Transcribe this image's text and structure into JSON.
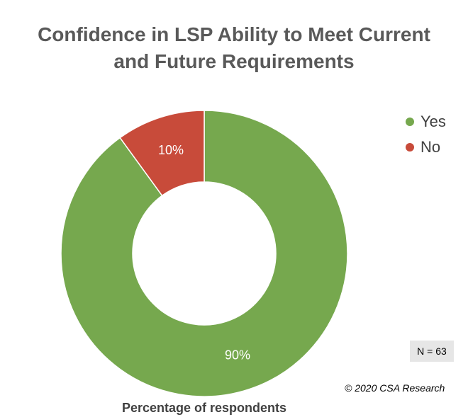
{
  "chart_data": {
    "type": "pie",
    "title_lines": [
      "Confidence in LSP Ability to Meet Current",
      "and Future Requirements"
    ],
    "categories": [
      "Yes",
      "No"
    ],
    "values": [
      90,
      10
    ],
    "value_labels": [
      "90%",
      "10%"
    ],
    "colors": [
      "#76a84e",
      "#c84b3a"
    ],
    "donut": true,
    "legend_position": "top-right",
    "caption": "Percentage of respondents",
    "annotations": {
      "sample_size": "N = 63",
      "copyright": "© 2020 CSA Research"
    }
  }
}
